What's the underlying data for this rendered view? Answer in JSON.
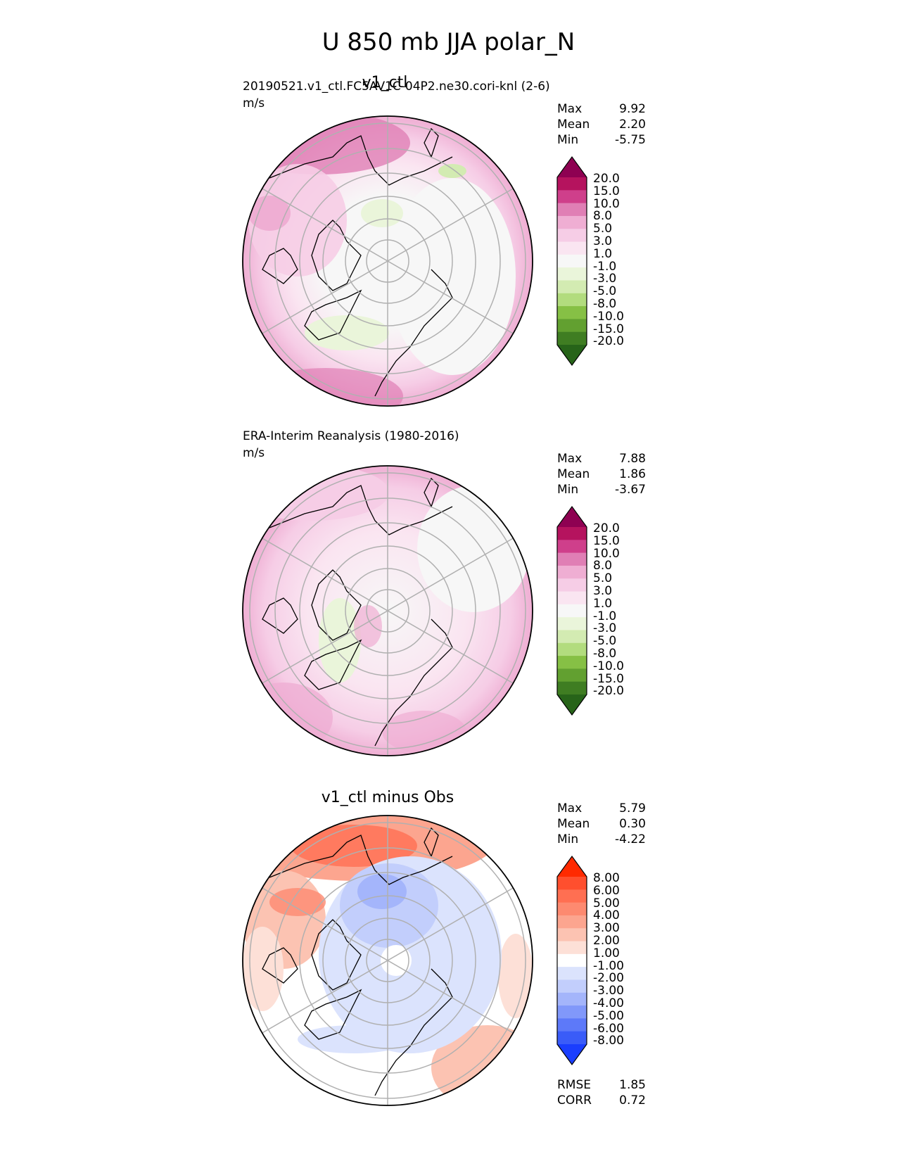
{
  "figure": {
    "title": "U 850 mb JJA polar_N"
  },
  "panels": [
    {
      "title": "v1_ctl",
      "subtitle": "20190521.v1_ctl.FC5AV1C-04P2.ne30.cori-knl (2-6)",
      "units": "m/s",
      "stats": [
        {
          "label": "Max",
          "value": "9.92"
        },
        {
          "label": "Mean",
          "value": "2.20"
        },
        {
          "label": "Min",
          "value": "-5.75"
        }
      ],
      "colorbar": {
        "ticks": [
          "20.0",
          "15.0",
          "10.0",
          "8.0",
          "5.0",
          "3.0",
          "1.0",
          "-1.0",
          "-3.0",
          "-5.0",
          "-8.0",
          "-10.0",
          "-15.0",
          "-20.0"
        ],
        "colors": [
          "#8e0152",
          "#b5135e",
          "#cf3f8b",
          "#e07fb5",
          "#efaed3",
          "#f6cde6",
          "#fae5f1",
          "#f7f7f7",
          "#eaf5da",
          "#d3ebb2",
          "#b2dc7e",
          "#86c045",
          "#62a030",
          "#3f7d22",
          "#276419"
        ],
        "extend": "both"
      }
    },
    {
      "title": "",
      "subtitle": "ERA-Interim Reanalysis (1980-2016)",
      "units": "m/s",
      "stats": [
        {
          "label": "Max",
          "value": "7.88"
        },
        {
          "label": "Mean",
          "value": "1.86"
        },
        {
          "label": "Min",
          "value": "-3.67"
        }
      ],
      "colorbar": {
        "ticks": [
          "20.0",
          "15.0",
          "10.0",
          "8.0",
          "5.0",
          "3.0",
          "1.0",
          "-1.0",
          "-3.0",
          "-5.0",
          "-8.0",
          "-10.0",
          "-15.0",
          "-20.0"
        ],
        "colors": [
          "#8e0152",
          "#b5135e",
          "#cf3f8b",
          "#e07fb5",
          "#efaed3",
          "#f6cde6",
          "#fae5f1",
          "#f7f7f7",
          "#eaf5da",
          "#d3ebb2",
          "#b2dc7e",
          "#86c045",
          "#62a030",
          "#3f7d22",
          "#276419"
        ],
        "extend": "both"
      }
    },
    {
      "title": "v1_ctl minus Obs",
      "subtitle": "",
      "units": "",
      "stats": [
        {
          "label": "Max",
          "value": "5.79"
        },
        {
          "label": "Mean",
          "value": "0.30"
        },
        {
          "label": "Min",
          "value": "-4.22"
        }
      ],
      "extra_stats": [
        {
          "label": "RMSE",
          "value": "1.85"
        },
        {
          "label": "CORR",
          "value": "0.72"
        }
      ],
      "colorbar": {
        "ticks": [
          "8.00",
          "6.00",
          "5.00",
          "4.00",
          "3.00",
          "2.00",
          "1.00",
          "-1.00",
          "-2.00",
          "-3.00",
          "-4.00",
          "-5.00",
          "-6.00",
          "-8.00"
        ],
        "colors": [
          "#ff2a00",
          "#ff4f2e",
          "#ff6f52",
          "#fd8a70",
          "#fca58f",
          "#fcc3b2",
          "#fde0d7",
          "#ffffff",
          "#dbe3fd",
          "#c2cefc",
          "#a4b5fb",
          "#8198fa",
          "#5d79f9",
          "#3a5cf8",
          "#1a3efe"
        ],
        "extend": "both"
      }
    }
  ],
  "chart_data": [
    {
      "type": "heatmap",
      "projection": "north polar stereographic",
      "variable": "U 850 mb",
      "season": "JJA",
      "units": "m/s",
      "stats": {
        "max": 9.92,
        "mean": 2.2,
        "min": -5.75
      },
      "levels": [
        -20,
        -15,
        -10,
        -8,
        -5,
        -3,
        -1,
        1,
        3,
        5,
        8,
        10,
        15,
        20
      ]
    },
    {
      "type": "heatmap",
      "projection": "north polar stereographic",
      "variable": "U 850 mb",
      "season": "JJA",
      "units": "m/s",
      "stats": {
        "max": 7.88,
        "mean": 1.86,
        "min": -3.67
      },
      "levels": [
        -20,
        -15,
        -10,
        -8,
        -5,
        -3,
        -1,
        1,
        3,
        5,
        8,
        10,
        15,
        20
      ]
    },
    {
      "type": "heatmap",
      "projection": "north polar stereographic",
      "variable": "U 850 mb difference",
      "season": "JJA",
      "units": "m/s",
      "stats": {
        "max": 5.79,
        "mean": 0.3,
        "min": -4.22,
        "rmse": 1.85,
        "corr": 0.72
      },
      "levels": [
        -8,
        -6,
        -5,
        -4,
        -3,
        -2,
        -1,
        1,
        2,
        3,
        4,
        5,
        6,
        8
      ]
    }
  ]
}
